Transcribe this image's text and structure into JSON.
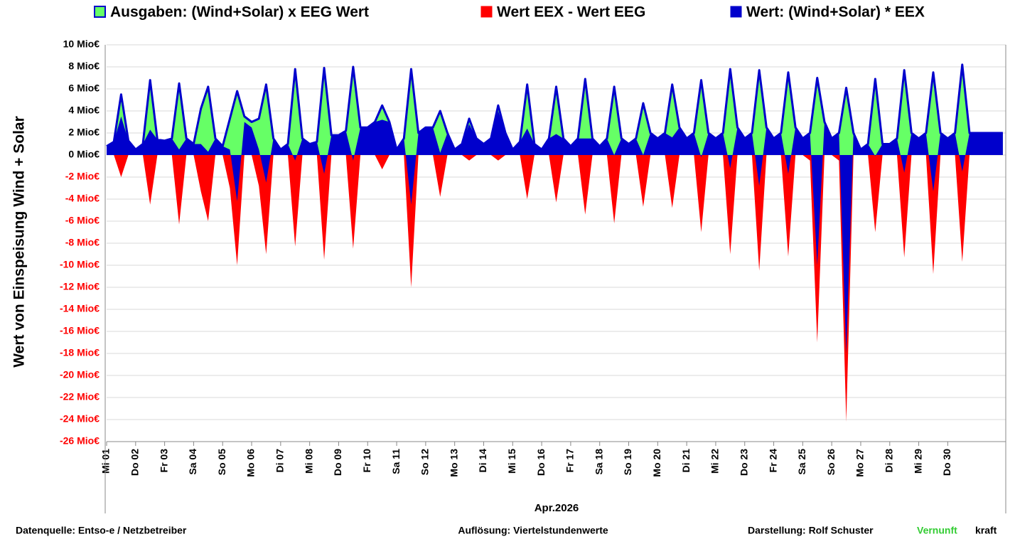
{
  "chart_data": {
    "type": "area",
    "y_label": "Wert von Einspeisung Wind + Solar",
    "x_label": "Apr.2026",
    "xlim": [
      0,
      31
    ],
    "ylim": [
      -26,
      10
    ],
    "yticks": [
      {
        "value": 10,
        "label": "10 Mio€"
      },
      {
        "value": 8,
        "label": "8 Mio€"
      },
      {
        "value": 6,
        "label": "6 Mio€"
      },
      {
        "value": 4,
        "label": "4 Mio€"
      },
      {
        "value": 2,
        "label": "2 Mio€"
      },
      {
        "value": 0,
        "label": "0 Mio€"
      },
      {
        "value": -2,
        "label": "-2 Mio€"
      },
      {
        "value": -4,
        "label": "-4 Mio€"
      },
      {
        "value": -6,
        "label": "-6 Mio€"
      },
      {
        "value": -8,
        "label": "-8 Mio€"
      },
      {
        "value": -10,
        "label": "-10 Mio€"
      },
      {
        "value": -12,
        "label": "-12 Mio€"
      },
      {
        "value": -14,
        "label": "-14 Mio€"
      },
      {
        "value": -16,
        "label": "-16 Mio€"
      },
      {
        "value": -18,
        "label": "-18 Mio€"
      },
      {
        "value": -20,
        "label": "-20 Mio€"
      },
      {
        "value": -22,
        "label": "-22 Mio€"
      },
      {
        "value": -24,
        "label": "-24 Mio€"
      },
      {
        "value": -26,
        "label": "-26 Mio€"
      }
    ],
    "xticks": [
      {
        "value": 0,
        "label": "Mi 01"
      },
      {
        "value": 1,
        "label": "Do 02"
      },
      {
        "value": 2,
        "label": "Fr 03"
      },
      {
        "value": 3,
        "label": "Sa 04"
      },
      {
        "value": 4,
        "label": "So 05"
      },
      {
        "value": 5,
        "label": "Mo 06"
      },
      {
        "value": 6,
        "label": "Di 07"
      },
      {
        "value": 7,
        "label": "Mi 08"
      },
      {
        "value": 8,
        "label": "Do 09"
      },
      {
        "value": 9,
        "label": "Fr 10"
      },
      {
        "value": 10,
        "label": "Sa 11"
      },
      {
        "value": 11,
        "label": "So 12"
      },
      {
        "value": 12,
        "label": "Mo 13"
      },
      {
        "value": 13,
        "label": "Di 14"
      },
      {
        "value": 14,
        "label": "Mi 15"
      },
      {
        "value": 15,
        "label": "Do 16"
      },
      {
        "value": 16,
        "label": "Fr 17"
      },
      {
        "value": 17,
        "label": "Sa 18"
      },
      {
        "value": 18,
        "label": "So 19"
      },
      {
        "value": 19,
        "label": "Mo 20"
      },
      {
        "value": 20,
        "label": "Di 21"
      },
      {
        "value": 21,
        "label": "Mi 22"
      },
      {
        "value": 22,
        "label": "Do 23"
      },
      {
        "value": 23,
        "label": "Fr 24"
      },
      {
        "value": 24,
        "label": "Sa 25"
      },
      {
        "value": 25,
        "label": "So 26"
      },
      {
        "value": 26,
        "label": "Mo 27"
      },
      {
        "value": 27,
        "label": "Di 28"
      },
      {
        "value": 28,
        "label": "Mi 29"
      },
      {
        "value": 29,
        "label": "Do 30"
      }
    ],
    "grid": true,
    "x": [
      0,
      0.25,
      0.5,
      0.75,
      1,
      1.25,
      1.5,
      1.75,
      2,
      2.25,
      2.5,
      2.75,
      3,
      3.25,
      3.5,
      3.75,
      4,
      4.25,
      4.5,
      4.75,
      5,
      5.25,
      5.5,
      5.75,
      6,
      6.25,
      6.5,
      6.75,
      7,
      7.25,
      7.5,
      7.75,
      8,
      8.25,
      8.5,
      8.75,
      9,
      9.25,
      9.5,
      9.75,
      10,
      10.25,
      10.5,
      10.75,
      11,
      11.25,
      11.5,
      11.75,
      12,
      12.25,
      12.5,
      12.75,
      13,
      13.25,
      13.5,
      13.75,
      14,
      14.25,
      14.5,
      14.75,
      15,
      15.25,
      15.5,
      15.75,
      16,
      16.25,
      16.5,
      16.75,
      17,
      17.25,
      17.5,
      17.75,
      18,
      18.25,
      18.5,
      18.75,
      19,
      19.25,
      19.5,
      19.75,
      20,
      20.25,
      20.5,
      20.75,
      21,
      21.25,
      21.5,
      21.75,
      22,
      22.25,
      22.5,
      22.75,
      23,
      23.25,
      23.5,
      23.75,
      24,
      24.25,
      24.5,
      24.75,
      25,
      25.25,
      25.5,
      25.75,
      26,
      26.25,
      26.5,
      26.75,
      27,
      27.25,
      27.5,
      27.75,
      28,
      28.25,
      28.5,
      28.75,
      29,
      29.25,
      29.5,
      29.75,
      30.9
    ],
    "series": [
      {
        "name": "Ausgaben: (Wind+Solar) x EEG Wert",
        "color": "#66ff66",
        "values": [
          0.8,
          1.2,
          5.5,
          1.3,
          0.5,
          1.0,
          6.8,
          1.4,
          1.3,
          1.5,
          6.5,
          1.5,
          1.0,
          4.2,
          6.2,
          1.5,
          0.8,
          3.3,
          5.8,
          3.5,
          3.0,
          3.3,
          6.4,
          1.5,
          0.5,
          1.0,
          7.8,
          1.5,
          1.0,
          1.2,
          7.9,
          1.8,
          1.8,
          2.2,
          8.0,
          2.5,
          2.5,
          3.0,
          4.5,
          3.0,
          0.5,
          1.5,
          7.8,
          2.0,
          2.5,
          2.5,
          4.0,
          2.0,
          0.5,
          1.0,
          3.3,
          1.5,
          1.0,
          1.5,
          4.5,
          2.0,
          0.5,
          1.2,
          6.4,
          1.0,
          0.5,
          1.5,
          6.2,
          1.5,
          0.8,
          1.5,
          6.9,
          1.5,
          0.8,
          1.5,
          6.2,
          1.5,
          1.0,
          1.5,
          4.7,
          2.0,
          1.5,
          2.0,
          6.4,
          2.5,
          1.5,
          2.0,
          6.8,
          2.0,
          1.5,
          2.0,
          7.8,
          2.5,
          1.5,
          2.0,
          7.7,
          2.5,
          1.5,
          2.0,
          7.5,
          2.5,
          1.5,
          2.0,
          7.0,
          3.0,
          1.5,
          2.0,
          6.1,
          2.0,
          0.5,
          1.0,
          6.9,
          1.0,
          1.0,
          1.5,
          7.7,
          2.0,
          1.5,
          2.0,
          7.5,
          2.0,
          1.5,
          2.0,
          8.2,
          2.0,
          2.0
        ]
      },
      {
        "name": "Wert EEX - Wert EEG",
        "color": "#ff0000",
        "values": [
          0,
          0,
          -2,
          0,
          0,
          0,
          -4.5,
          0,
          0,
          0,
          -6.3,
          0,
          0,
          -3.3,
          -6,
          0,
          0,
          -3,
          -10,
          0,
          0,
          -2.8,
          -9,
          0,
          0,
          0,
          -8.3,
          0,
          0,
          0,
          -9.5,
          0,
          0,
          0,
          -8.5,
          0,
          0,
          0,
          -1.3,
          0,
          0,
          0,
          -12,
          0,
          0,
          0,
          -3.8,
          0,
          0,
          0,
          -0.5,
          0,
          0,
          0,
          -0.5,
          0,
          0,
          0,
          -4,
          0,
          0,
          0,
          -4.3,
          0,
          0,
          0,
          -5.4,
          0,
          0,
          0,
          -6.2,
          0,
          0,
          0,
          -4.7,
          0,
          0,
          0,
          -4.8,
          0,
          0,
          0,
          -7,
          0,
          0,
          0,
          -9,
          0,
          0,
          0,
          -10.5,
          0,
          0,
          0,
          -9.2,
          0,
          0,
          -0.5,
          -17,
          0,
          0,
          -0.5,
          -24.2,
          0,
          0,
          0,
          -7,
          0,
          0,
          0,
          -9.3,
          0,
          0,
          0,
          -10.8,
          0,
          0,
          0,
          -9.7,
          0,
          0
        ]
      },
      {
        "name": "Wert: (Wind+Solar) * EEX",
        "color": "#0000cc",
        "values": [
          0.8,
          1.2,
          3.5,
          1.3,
          0.5,
          1.0,
          2.3,
          1.4,
          1.3,
          1.5,
          0.5,
          1.5,
          1.0,
          1.0,
          0.3,
          1.5,
          0.8,
          0.5,
          -4.2,
          3.0,
          2.5,
          0.5,
          -2.5,
          1.5,
          0.5,
          1.0,
          -0.5,
          1.5,
          1.0,
          1.2,
          -1.7,
          1.8,
          1.8,
          2.2,
          -0.5,
          2.5,
          2.5,
          3.0,
          3.2,
          3.0,
          0.5,
          1.5,
          -4.5,
          2.0,
          2.5,
          2.5,
          0.2,
          2.0,
          0.5,
          1.0,
          2.8,
          1.5,
          1.0,
          1.5,
          4.0,
          2.0,
          0.5,
          1.2,
          2.4,
          1.0,
          0.5,
          1.5,
          1.9,
          1.5,
          0.8,
          1.5,
          1.5,
          1.5,
          0.8,
          1.5,
          0,
          1.5,
          1.0,
          1.5,
          0,
          2.0,
          1.5,
          2.0,
          1.6,
          2.5,
          1.5,
          2.0,
          -0.2,
          2.0,
          1.5,
          2.0,
          -1.2,
          2.5,
          1.5,
          2.0,
          -2.8,
          2.5,
          1.5,
          2.0,
          -1.7,
          2.5,
          1.5,
          2.0,
          -10,
          3.0,
          1.5,
          2.0,
          -18,
          2.0,
          0.5,
          1.0,
          -0.1,
          1.0,
          1.0,
          1.5,
          -1.6,
          2.0,
          1.5,
          2.0,
          -3.3,
          2.0,
          1.5,
          2.0,
          -1.5,
          2.0,
          2.0
        ]
      }
    ]
  },
  "footer": {
    "source": "Datenquelle:  Entso-e  / Netzbetreiber",
    "resolution": "Auflösung: Viertelstundenwerte",
    "author": "Darstellung:  Rolf Schuster",
    "brand_green": "Vernunft",
    "brand_rest": "kraft"
  }
}
